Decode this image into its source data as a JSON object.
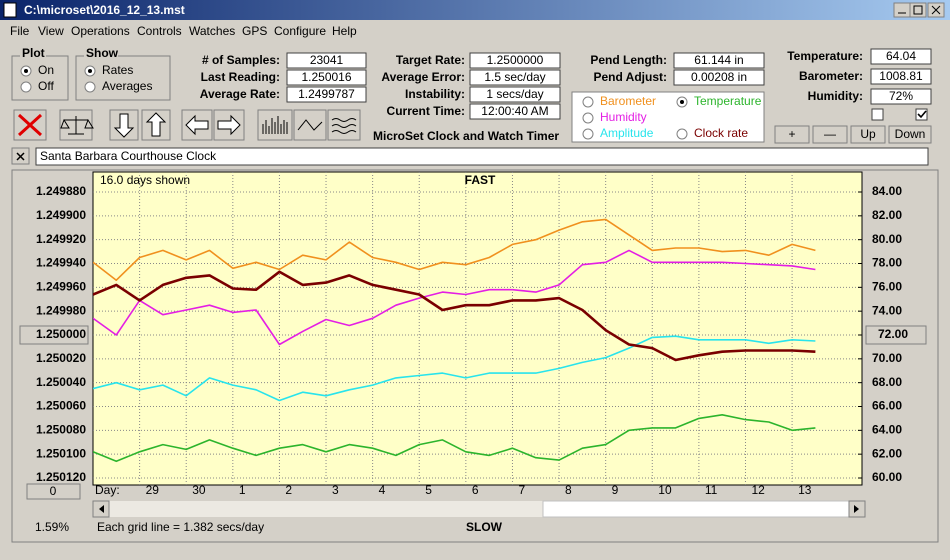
{
  "window": {
    "title": "C:\\microset\\2016_12_13.mst"
  },
  "menu": [
    "File",
    "View",
    "Operations",
    "Controls",
    "Watches",
    "GPS",
    "Configure",
    "Help"
  ],
  "plot_group": {
    "title": "Plot",
    "options": [
      "On",
      "Off"
    ]
  },
  "show_group": {
    "title": "Show",
    "options": [
      "Rates",
      "Averages"
    ]
  },
  "stats": [
    {
      "label": "# of Samples:",
      "value": "23041"
    },
    {
      "label": "Last Reading:",
      "value": "1.250016"
    },
    {
      "label": "Average Rate:",
      "value": "1.2499787"
    }
  ],
  "rates": [
    {
      "label": "Target Rate:",
      "value": "1.2500000"
    },
    {
      "label": "Average Error:",
      "value": "1.5 sec/day"
    },
    {
      "label": "Instability:",
      "value": "1 secs/day"
    },
    {
      "label": "Current Time:",
      "value": "12:00:40 AM"
    }
  ],
  "app_title": "MicroSet Clock and Watch Timer",
  "pendulum": [
    {
      "label": "Pend Length:",
      "value": "61.144 in"
    },
    {
      "label": "Pend Adjust:",
      "value": "0.00208 in"
    }
  ],
  "pens": [
    "Barometer",
    "Temperature",
    "Humidity",
    "Amplitude",
    "Clock rate"
  ],
  "sensors": [
    {
      "label": "Temperature:",
      "value": "64.04"
    },
    {
      "label": "Barometer:",
      "value": "1008.81"
    },
    {
      "label": "Humidity:",
      "value": "72%"
    }
  ],
  "buttons": [
    "+",
    "—",
    "Up",
    "Down"
  ],
  "clock_name": "Santa Barbara Courthouse Clock",
  "chart_data": {
    "type": "line",
    "days_shown": "16.0 days shown",
    "top_label": "FAST",
    "bottom_label": "SLOW",
    "x_axis_label": "Day:",
    "grid_note": "Each grid line = 1.382 secs/day",
    "percent": "1.59%",
    "offset_button": "0",
    "grid": true,
    "xlim": [
      0,
      16.5
    ],
    "xticks": [
      {
        "value": 1,
        "label": "29"
      },
      {
        "value": 2,
        "label": "30"
      },
      {
        "value": 3,
        "label": "1"
      },
      {
        "value": 4,
        "label": "2"
      },
      {
        "value": 5,
        "label": "3"
      },
      {
        "value": 6,
        "label": "4"
      },
      {
        "value": 7,
        "label": "5"
      },
      {
        "value": 8,
        "label": "6"
      },
      {
        "value": 9,
        "label": "7"
      },
      {
        "value": 10,
        "label": "8"
      },
      {
        "value": 11,
        "label": "9"
      },
      {
        "value": 12,
        "label": "10"
      },
      {
        "value": 13,
        "label": "11"
      },
      {
        "value": 14,
        "label": "12"
      },
      {
        "value": 15,
        "label": "13"
      }
    ],
    "ylim": [
      1.24988,
      1.25012
    ],
    "y_inverted": true,
    "yticks": [
      {
        "value": 1.24988,
        "label": "1.249880"
      },
      {
        "value": 1.2499,
        "label": "1.249900"
      },
      {
        "value": 1.24992,
        "label": "1.249920"
      },
      {
        "value": 1.24994,
        "label": "1.249940"
      },
      {
        "value": 1.24996,
        "label": "1.249960"
      },
      {
        "value": 1.24998,
        "label": "1.249980"
      },
      {
        "value": 1.25,
        "label": "1.250000"
      },
      {
        "value": 1.25002,
        "label": "1.250020"
      },
      {
        "value": 1.25004,
        "label": "1.250040"
      },
      {
        "value": 1.25006,
        "label": "1.250060"
      },
      {
        "value": 1.25008,
        "label": "1.250080"
      },
      {
        "value": 1.2501,
        "label": "1.250100"
      },
      {
        "value": 1.25012,
        "label": "1.250120"
      }
    ],
    "y2lim": [
      60,
      84
    ],
    "y2ticks": [
      {
        "value": 84,
        "label": "84.00"
      },
      {
        "value": 82,
        "label": "82.00"
      },
      {
        "value": 80,
        "label": "80.00"
      },
      {
        "value": 78,
        "label": "78.00"
      },
      {
        "value": 76,
        "label": "76.00"
      },
      {
        "value": 74,
        "label": "74.00"
      },
      {
        "value": 72,
        "label": "72.00"
      },
      {
        "value": 70,
        "label": "70.00"
      },
      {
        "value": 68,
        "label": "68.00"
      },
      {
        "value": 66,
        "label": "66.00"
      },
      {
        "value": 64,
        "label": "64.00"
      },
      {
        "value": 62,
        "label": "62.00"
      },
      {
        "value": 60,
        "label": "60.00"
      }
    ],
    "x": [
      0,
      0.5,
      1,
      1.5,
      2,
      2.5,
      3,
      3.5,
      4,
      4.5,
      5,
      5.5,
      6,
      6.5,
      7,
      7.5,
      8,
      8.5,
      9,
      9.5,
      10,
      10.5,
      11,
      11.5,
      12,
      12.5,
      13,
      13.5,
      14,
      14.5,
      15,
      15.5
    ],
    "series": [
      {
        "color": "#f0901e",
        "axis": "y2",
        "values": [
          78.1,
          76.6,
          78.5,
          79.1,
          78.3,
          79.1,
          77.6,
          78.1,
          77.5,
          78.7,
          78.3,
          79.8,
          78.5,
          78.1,
          77.5,
          78.1,
          77.9,
          78.5,
          79.6,
          80.0,
          80.8,
          81.5,
          81.7,
          80.4,
          79.1,
          79.3,
          79.3,
          79.0,
          79.1,
          78.7,
          79.6,
          79.1
        ]
      },
      {
        "color": "#e41ee4",
        "axis": "y2",
        "values": [
          73.4,
          72.0,
          74.9,
          73.7,
          74.1,
          74.5,
          73.9,
          74.1,
          71.2,
          72.3,
          73.3,
          72.8,
          73.4,
          74.5,
          75.1,
          75.6,
          75.4,
          75.8,
          75.8,
          75.6,
          76.2,
          77.9,
          78.1,
          79.1,
          78.1,
          78.1,
          78.1,
          78.1,
          78.0,
          77.9,
          77.8,
          77.5
        ]
      },
      {
        "color": "#28e4ec",
        "axis": "y2",
        "values": [
          67.5,
          68.0,
          67.4,
          67.8,
          66.9,
          68.4,
          67.8,
          67.4,
          66.5,
          67.2,
          66.9,
          67.4,
          67.8,
          68.4,
          68.6,
          68.8,
          68.4,
          68.8,
          68.8,
          68.8,
          69.2,
          69.7,
          70.1,
          70.9,
          71.8,
          71.9,
          71.6,
          71.6,
          71.6,
          71.3,
          71.6,
          71.5
        ]
      },
      {
        "color": "#2cb42c",
        "axis": "y2",
        "values": [
          62.2,
          61.4,
          62.2,
          62.8,
          62.4,
          63.2,
          62.5,
          61.9,
          62.5,
          62.8,
          62.2,
          62.8,
          62.5,
          61.9,
          62.8,
          63.2,
          62.2,
          61.9,
          62.5,
          61.7,
          61.5,
          62.5,
          62.8,
          64.0,
          64.2,
          64.2,
          65.0,
          65.3,
          64.9,
          64.7,
          64.0,
          64.2
        ]
      },
      {
        "color": "#7a0000",
        "values": [
          1.249966,
          1.249958,
          1.249971,
          1.249958,
          1.249952,
          1.24995,
          1.249961,
          1.249962,
          1.249947,
          1.249958,
          1.249956,
          1.24995,
          1.249958,
          1.249962,
          1.249966,
          1.249979,
          1.249975,
          1.249975,
          1.249971,
          1.249971,
          1.249969,
          1.249979,
          1.249996,
          1.250008,
          1.250011,
          1.250021,
          1.250017,
          1.250014,
          1.250013,
          1.250013,
          1.250013,
          1.250014
        ]
      }
    ]
  }
}
